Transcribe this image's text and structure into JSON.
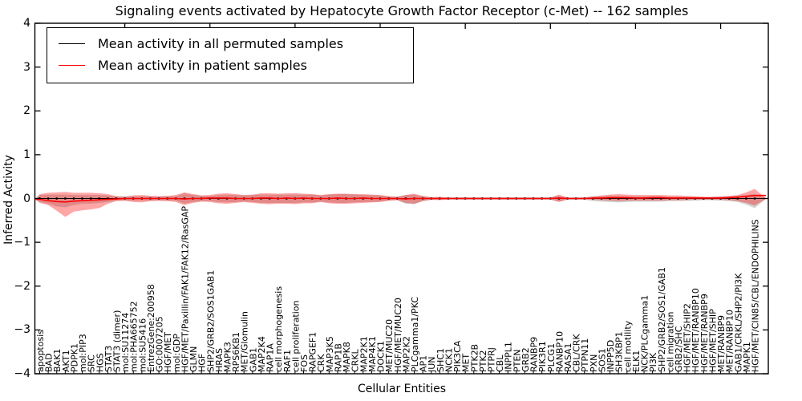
{
  "title": "Signaling events activated by Hepatocyte Growth Factor Receptor (c-Met) -- 162 samples",
  "axes": {
    "ylabel": "Inferred Activity",
    "xlabel": "Cellular Entities"
  },
  "legend": {
    "items": [
      {
        "label": "Mean activity in all permuted samples",
        "color": "#000000"
      },
      {
        "label": "Mean activity in patient samples",
        "color": "#ff0000"
      }
    ]
  },
  "chart_data": {
    "type": "line",
    "title": "Signaling events activated by Hepatocyte Growth Factor Receptor (c-Met) -- 162 samples",
    "xlabel": "Cellular Entities",
    "ylabel": "Inferred Activity",
    "ylim": [
      -4,
      4
    ],
    "yticks": [
      4,
      3,
      2,
      1,
      0,
      -1,
      -2,
      -3,
      -4
    ],
    "grid": false,
    "legend_position": "upper left",
    "categories": [
      "apoptosis",
      "BAD",
      "BAK1",
      "AKT1",
      "PDPK1",
      "mol:PIP3",
      "SRC",
      "HGS",
      "STAT3",
      "STAT3 (dimer)",
      "mol:SU11274",
      "mol:PHA665752",
      "mol:SU5416",
      "EntrezGene:200958",
      "GO:0007205",
      "HGF/MET",
      "mol:GDP",
      "HGF/MET/Paxillin/FAK1/FAK12/RasGAP",
      "GLMN",
      "HGF",
      "SHP2/GRB2/SOS1GAB1",
      "HRAS",
      "MAPK3",
      "RPS6KB1",
      "MET/Glomulin",
      "GAB1",
      "MAP2K4",
      "RAP1A",
      "cell morphogenesis",
      "RAF1",
      "cell proliferation",
      "FOS",
      "RAPGEF1",
      "CRK",
      "MAP3K5",
      "RAP1B",
      "MAPK8",
      "CRKL",
      "MAP2K1",
      "MAP4K1",
      "DOCK1",
      "MET/MUC20",
      "HGF/MET/MUC20",
      "MAP2K2",
      "PLCgamma1/PKC",
      "AP1",
      "JUN",
      "SHC1",
      "NCK1",
      "PIK3CA",
      "MET",
      "PTK2B",
      "PTK2",
      "PTPRJ",
      "CBL",
      "INPPL1",
      "PTEN",
      "GRB2",
      "RANBP9",
      "PIK3R1",
      "PLCG1",
      "RANBP10",
      "RASA1",
      "CBL/CRK",
      "PTPN11",
      "PXN",
      "SOS1",
      "INPP5D",
      "SH3KBP1",
      "cell motility",
      "ELK1",
      "NCK/PLCgamma1",
      "PI3K",
      "SHP2/GRB2/SOS1/GAB1",
      "cell migration",
      "GRB2/SHC",
      "HGF/MET/SHIP2",
      "HGF/MET/RANBP10",
      "HGF/MET/RANBP9",
      "HGF/MET/SHIP",
      "MET/RANBP9",
      "MET/RANBP10",
      "GAB1/CRKL/SHP2/PI3K",
      "MAPK1",
      "HGF/MET/CIN85/CBL/ENDOPHILINS"
    ],
    "series": [
      {
        "name": "Mean activity in all permuted samples",
        "color": "#000000",
        "band_color": "rgba(0,0,0,0.18)",
        "marker": "dot",
        "values": [
          0,
          0,
          0,
          0,
          0,
          0,
          0,
          0,
          0,
          0,
          0,
          0,
          0,
          0,
          0,
          0,
          0,
          0,
          0,
          0,
          0,
          0,
          0,
          0,
          0,
          0,
          0,
          0,
          0,
          0,
          0,
          0,
          0,
          0,
          0,
          0,
          0,
          0,
          0,
          0,
          0,
          0,
          0,
          0,
          0,
          0,
          0,
          0,
          0,
          0,
          0,
          0,
          0,
          0,
          0,
          0,
          0,
          0,
          0,
          0,
          0,
          0,
          0,
          0,
          0,
          0,
          0,
          0,
          0,
          0,
          0,
          0,
          0,
          0,
          0,
          0,
          0,
          0,
          0,
          0,
          0,
          0,
          0,
          0,
          0
        ],
        "band_upper": [
          0.08,
          0.09,
          0.09,
          0.09,
          0.08,
          0.08,
          0.08,
          0.08,
          0.07,
          0.05,
          0.05,
          0.05,
          0.05,
          0.05,
          0.05,
          0.05,
          0.05,
          0.12,
          0.08,
          0.06,
          0.06,
          0.08,
          0.09,
          0.08,
          0.07,
          0.08,
          0.09,
          0.09,
          0.09,
          0.09,
          0.09,
          0.09,
          0.09,
          0.07,
          0.09,
          0.1,
          0.1,
          0.09,
          0.08,
          0.08,
          0.07,
          0.05,
          0.04,
          0.08,
          0.09,
          0.05,
          0.03,
          0.03,
          0.03,
          0.03,
          0.03,
          0.03,
          0.03,
          0.03,
          0.03,
          0.03,
          0.03,
          0.03,
          0.03,
          0.03,
          0.03,
          0.06,
          0.03,
          0.03,
          0.03,
          0.04,
          0.05,
          0.06,
          0.06,
          0.05,
          0.05,
          0.05,
          0.05,
          0.05,
          0.04,
          0.04,
          0.04,
          0.04,
          0.03,
          0.03,
          0.04,
          0.05,
          0.06,
          0.08,
          0.1
        ],
        "band_lower": [
          -0.08,
          -0.12,
          -0.18,
          -0.2,
          -0.15,
          -0.12,
          -0.12,
          -0.1,
          -0.08,
          -0.05,
          -0.05,
          -0.05,
          -0.05,
          -0.05,
          -0.05,
          -0.05,
          -0.05,
          -0.12,
          -0.08,
          -0.06,
          -0.06,
          -0.08,
          -0.09,
          -0.08,
          -0.07,
          -0.08,
          -0.1,
          -0.1,
          -0.1,
          -0.1,
          -0.1,
          -0.09,
          -0.09,
          -0.07,
          -0.09,
          -0.1,
          -0.1,
          -0.09,
          -0.08,
          -0.08,
          -0.07,
          -0.05,
          -0.04,
          -0.12,
          -0.13,
          -0.06,
          -0.03,
          -0.03,
          -0.03,
          -0.03,
          -0.03,
          -0.03,
          -0.03,
          -0.03,
          -0.03,
          -0.03,
          -0.03,
          -0.03,
          -0.03,
          -0.03,
          -0.03,
          -0.07,
          -0.03,
          -0.03,
          -0.03,
          -0.06,
          -0.07,
          -0.08,
          -0.09,
          -0.08,
          -0.07,
          -0.07,
          -0.07,
          -0.07,
          -0.06,
          -0.06,
          -0.05,
          -0.05,
          -0.04,
          -0.04,
          -0.05,
          -0.06,
          -0.08,
          -0.14,
          -0.22
        ]
      },
      {
        "name": "Mean activity in patient samples",
        "color": "#ff0000",
        "band_color": "rgba(255,0,0,0.35)",
        "marker": "none",
        "values": [
          -0.02,
          -0.05,
          -0.07,
          -0.08,
          -0.06,
          -0.05,
          -0.04,
          -0.03,
          -0.02,
          -0.01,
          0,
          0,
          0,
          0,
          0,
          0,
          0,
          -0.01,
          0,
          0,
          0.01,
          0.01,
          0.01,
          0,
          0,
          0,
          0.01,
          0.01,
          0,
          0.01,
          0,
          0.01,
          0,
          0,
          0,
          0.01,
          0,
          0,
          0.01,
          0,
          0,
          0,
          0,
          -0.01,
          0,
          0,
          0,
          0,
          0,
          0,
          0,
          0,
          0,
          0,
          0,
          0,
          0,
          0,
          0,
          0,
          0,
          0.01,
          0,
          0,
          0,
          0.01,
          0.01,
          0.02,
          0.02,
          0.02,
          0.01,
          0.01,
          0.02,
          0.02,
          0.01,
          0.01,
          0.01,
          0.01,
          0.01,
          0.01,
          0.01,
          0.02,
          0.03,
          0.05,
          0.07
        ],
        "band_upper": [
          0.1,
          0.13,
          0.14,
          0.15,
          0.13,
          0.13,
          0.13,
          0.12,
          0.1,
          0.05,
          0.04,
          0.07,
          0.08,
          0.06,
          0.05,
          0.06,
          0.08,
          0.14,
          0.1,
          0.07,
          0.08,
          0.11,
          0.12,
          0.1,
          0.08,
          0.09,
          0.12,
          0.12,
          0.11,
          0.12,
          0.12,
          0.11,
          0.1,
          0.08,
          0.1,
          0.11,
          0.11,
          0.1,
          0.1,
          0.09,
          0.08,
          0.05,
          0.04,
          0.08,
          0.11,
          0.06,
          0.03,
          0.04,
          0.02,
          0.02,
          0.02,
          0.02,
          0.02,
          0.02,
          0.02,
          0.02,
          0.02,
          0.02,
          0.02,
          0.02,
          0.02,
          0.09,
          0.02,
          0.02,
          0.02,
          0.05,
          0.07,
          0.09,
          0.1,
          0.09,
          0.08,
          0.08,
          0.08,
          0.08,
          0.07,
          0.07,
          0.06,
          0.05,
          0.04,
          0.04,
          0.05,
          0.06,
          0.08,
          0.14,
          0.22
        ],
        "band_lower": [
          -0.1,
          -0.15,
          -0.28,
          -0.42,
          -0.3,
          -0.27,
          -0.25,
          -0.22,
          -0.12,
          -0.06,
          -0.05,
          -0.08,
          -0.09,
          -0.06,
          -0.05,
          -0.06,
          -0.08,
          -0.15,
          -0.1,
          -0.07,
          -0.08,
          -0.11,
          -0.12,
          -0.1,
          -0.08,
          -0.1,
          -0.12,
          -0.13,
          -0.12,
          -0.12,
          -0.13,
          -0.11,
          -0.11,
          -0.08,
          -0.11,
          -0.12,
          -0.12,
          -0.11,
          -0.1,
          -0.09,
          -0.08,
          -0.05,
          -0.04,
          -0.1,
          -0.12,
          -0.06,
          -0.03,
          -0.04,
          -0.02,
          -0.02,
          -0.02,
          -0.02,
          -0.02,
          -0.02,
          -0.02,
          -0.02,
          -0.02,
          -0.02,
          -0.02,
          -0.02,
          -0.02,
          -0.08,
          -0.02,
          -0.02,
          -0.02,
          -0.03,
          -0.04,
          -0.05,
          -0.06,
          -0.05,
          -0.05,
          -0.05,
          -0.05,
          -0.05,
          -0.04,
          -0.04,
          -0.04,
          -0.03,
          -0.03,
          -0.03,
          -0.03,
          -0.04,
          -0.06,
          -0.1,
          -0.16
        ]
      }
    ]
  }
}
